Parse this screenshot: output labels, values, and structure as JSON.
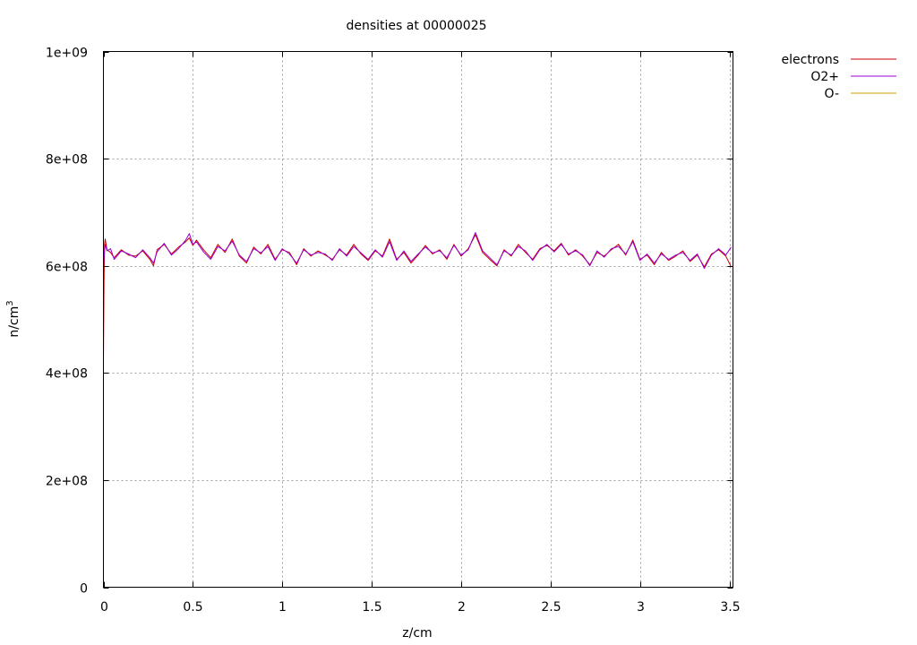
{
  "chart_data": {
    "type": "line",
    "title": "densities at 00000025",
    "xlabel": "z/cm",
    "ylabel_base": "n/cm",
    "ylabel_sup": "3",
    "xlim": [
      0,
      3.52
    ],
    "ylim": [
      0,
      1000000000
    ],
    "grid": true,
    "legend_placement": "top-right outside plot",
    "x_ticks": [
      {
        "value": 0,
        "label": "0"
      },
      {
        "value": 0.5,
        "label": "0.5"
      },
      {
        "value": 1,
        "label": "1"
      },
      {
        "value": 1.5,
        "label": "1.5"
      },
      {
        "value": 2,
        "label": "2"
      },
      {
        "value": 2.5,
        "label": "2.5"
      },
      {
        "value": 3,
        "label": "3"
      },
      {
        "value": 3.5,
        "label": "3.5"
      }
    ],
    "y_ticks": [
      {
        "value": 0,
        "label": "0"
      },
      {
        "value": 200000000,
        "label": "2e+08"
      },
      {
        "value": 400000000,
        "label": "4e+08"
      },
      {
        "value": 600000000,
        "label": "6e+08"
      },
      {
        "value": 800000000,
        "label": "8e+08"
      },
      {
        "value": 1000000000,
        "label": "1e+09"
      }
    ],
    "series": [
      {
        "name": "electrons",
        "color": "#cc0000",
        "x": [
          0,
          0.003,
          0.006,
          0.01,
          0.02,
          0.04,
          0.06,
          0.1,
          0.14,
          0.18,
          0.22,
          0.26,
          0.28,
          0.3,
          0.34,
          0.38,
          0.42,
          0.46,
          0.48,
          0.5,
          0.52,
          0.56,
          0.6,
          0.64,
          0.68,
          0.72,
          0.76,
          0.8,
          0.84,
          0.88,
          0.92,
          0.96,
          1.0,
          1.04,
          1.08,
          1.12,
          1.16,
          1.2,
          1.24,
          1.28,
          1.32,
          1.36,
          1.4,
          1.44,
          1.48,
          1.52,
          1.56,
          1.6,
          1.64,
          1.68,
          1.72,
          1.76,
          1.8,
          1.84,
          1.88,
          1.92,
          1.96,
          2.0,
          2.04,
          2.08,
          2.12,
          2.16,
          2.2,
          2.24,
          2.28,
          2.32,
          2.36,
          2.4,
          2.44,
          2.48,
          2.52,
          2.56,
          2.6,
          2.64,
          2.68,
          2.72,
          2.76,
          2.8,
          2.84,
          2.88,
          2.92,
          2.96,
          3.0,
          3.04,
          3.08,
          3.12,
          3.16,
          3.2,
          3.24,
          3.28,
          3.32,
          3.36,
          3.4,
          3.44,
          3.48,
          3.51
        ],
        "values": [
          420000000,
          560000000,
          640000000,
          650000000,
          630000000,
          625000000,
          615000000,
          630000000,
          620000000,
          618000000,
          628000000,
          612000000,
          600000000,
          630000000,
          640000000,
          622000000,
          635000000,
          645000000,
          652000000,
          638000000,
          648000000,
          630000000,
          615000000,
          640000000,
          625000000,
          650000000,
          618000000,
          605000000,
          635000000,
          622000000,
          640000000,
          612000000,
          630000000,
          625000000,
          602000000,
          632000000,
          618000000,
          628000000,
          620000000,
          612000000,
          630000000,
          620000000,
          640000000,
          622000000,
          610000000,
          628000000,
          618000000,
          650000000,
          612000000,
          625000000,
          605000000,
          620000000,
          638000000,
          622000000,
          630000000,
          612000000,
          640000000,
          618000000,
          632000000,
          658000000,
          625000000,
          612000000,
          600000000,
          630000000,
          618000000,
          640000000,
          625000000,
          612000000,
          632000000,
          638000000,
          628000000,
          642000000,
          620000000,
          630000000,
          618000000,
          602000000,
          625000000,
          618000000,
          630000000,
          640000000,
          620000000,
          648000000,
          612000000,
          620000000,
          602000000,
          625000000,
          610000000,
          618000000,
          628000000,
          608000000,
          620000000,
          598000000,
          622000000,
          630000000,
          618000000,
          598000000
        ]
      },
      {
        "name": "O2+",
        "color": "#9400d3",
        "x": [
          0,
          0.003,
          0.006,
          0.01,
          0.02,
          0.04,
          0.06,
          0.1,
          0.14,
          0.18,
          0.22,
          0.26,
          0.28,
          0.3,
          0.34,
          0.38,
          0.42,
          0.46,
          0.48,
          0.5,
          0.52,
          0.56,
          0.6,
          0.64,
          0.68,
          0.72,
          0.76,
          0.8,
          0.84,
          0.88,
          0.92,
          0.96,
          1.0,
          1.04,
          1.08,
          1.12,
          1.16,
          1.2,
          1.24,
          1.28,
          1.32,
          1.36,
          1.4,
          1.44,
          1.48,
          1.52,
          1.56,
          1.6,
          1.64,
          1.68,
          1.72,
          1.76,
          1.8,
          1.84,
          1.88,
          1.92,
          1.96,
          2.0,
          2.04,
          2.08,
          2.12,
          2.16,
          2.2,
          2.24,
          2.28,
          2.32,
          2.36,
          2.4,
          2.44,
          2.48,
          2.52,
          2.56,
          2.6,
          2.64,
          2.68,
          2.72,
          2.76,
          2.8,
          2.84,
          2.88,
          2.92,
          2.96,
          3.0,
          3.04,
          3.08,
          3.12,
          3.16,
          3.2,
          3.24,
          3.28,
          3.32,
          3.36,
          3.4,
          3.44,
          3.48,
          3.51
        ],
        "values": [
          600000000,
          615000000,
          625000000,
          640000000,
          628000000,
          632000000,
          612000000,
          628000000,
          622000000,
          615000000,
          630000000,
          615000000,
          605000000,
          626000000,
          642000000,
          620000000,
          632000000,
          648000000,
          660000000,
          640000000,
          645000000,
          626000000,
          612000000,
          636000000,
          628000000,
          646000000,
          620000000,
          608000000,
          632000000,
          624000000,
          636000000,
          610000000,
          632000000,
          622000000,
          605000000,
          630000000,
          620000000,
          625000000,
          622000000,
          610000000,
          632000000,
          618000000,
          636000000,
          624000000,
          612000000,
          630000000,
          616000000,
          645000000,
          610000000,
          628000000,
          608000000,
          622000000,
          635000000,
          624000000,
          628000000,
          615000000,
          638000000,
          620000000,
          630000000,
          662000000,
          628000000,
          615000000,
          602000000,
          628000000,
          620000000,
          636000000,
          628000000,
          610000000,
          630000000,
          640000000,
          626000000,
          640000000,
          622000000,
          628000000,
          620000000,
          600000000,
          628000000,
          616000000,
          632000000,
          636000000,
          622000000,
          645000000,
          610000000,
          622000000,
          605000000,
          622000000,
          612000000,
          620000000,
          625000000,
          610000000,
          622000000,
          595000000,
          620000000,
          632000000,
          620000000,
          635000000
        ]
      },
      {
        "name": "O-",
        "color": "#c8a000",
        "x": [],
        "values": []
      }
    ]
  }
}
